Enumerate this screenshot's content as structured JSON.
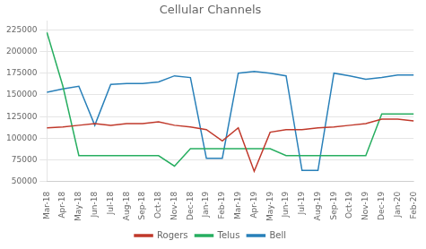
{
  "chart_data": {
    "type": "line",
    "title": "Cellular Channels",
    "categories": [
      "Mar-18",
      "Apr-18",
      "May-18",
      "Jun-18",
      "Jul-18",
      "Aug-18",
      "Sep-18",
      "Oct-18",
      "Nov-18",
      "Dec-18",
      "Jan-19",
      "Feb-19",
      "Mar-19",
      "Apr-19",
      "May-19",
      "Jun-19",
      "Jul-19",
      "Aug-19",
      "Sep-19",
      "Oct-19",
      "Nov-19",
      "Dec-19",
      "Jan-20",
      "Feb-20"
    ],
    "series": [
      {
        "name": "Rogers",
        "color": "#c0392b",
        "values": [
          112000,
          113000,
          115000,
          117000,
          115000,
          117000,
          117000,
          119000,
          115000,
          113000,
          110000,
          97000,
          112000,
          62000,
          107000,
          110000,
          110000,
          112000,
          113000,
          115000,
          117000,
          122000,
          122000,
          120000
        ]
      },
      {
        "name": "Telus",
        "color": "#27ae60",
        "values": [
          222000,
          160000,
          80000,
          80000,
          80000,
          80000,
          80000,
          80000,
          68000,
          88000,
          88000,
          88000,
          88000,
          88000,
          88000,
          80000,
          80000,
          80000,
          80000,
          80000,
          80000,
          128000,
          128000,
          128000
        ]
      },
      {
        "name": "Bell",
        "color": "#2980b9",
        "values": [
          153000,
          157000,
          160000,
          115000,
          162000,
          163000,
          163000,
          165000,
          172000,
          170000,
          77000,
          77000,
          175000,
          177000,
          175000,
          172000,
          63000,
          63000,
          175000,
          172000,
          168000,
          170000,
          173000,
          173000
        ]
      }
    ],
    "ylim": [
      50000,
      235000
    ],
    "yticks": [
      50000,
      75000,
      100000,
      125000,
      150000,
      175000,
      200000,
      225000
    ],
    "grid": true,
    "legend": "bottom"
  }
}
